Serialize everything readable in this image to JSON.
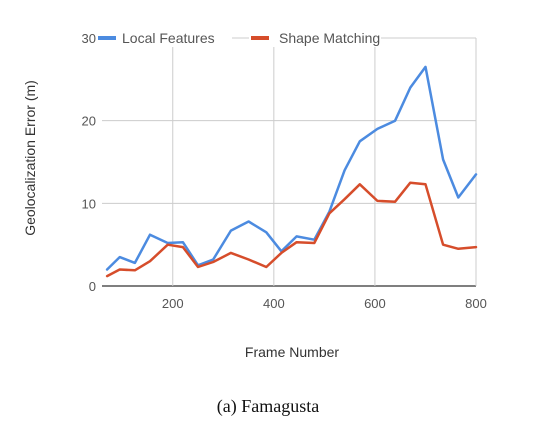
{
  "chart_data": {
    "type": "line",
    "title": "",
    "xlabel": "Frame Number",
    "ylabel": "Geolocalization Error (m)",
    "xlim": [
      60,
      800
    ],
    "ylim": [
      0,
      30
    ],
    "x_ticks": [
      200,
      400,
      600,
      800
    ],
    "y_ticks": [
      0,
      10,
      20,
      30
    ],
    "grid": true,
    "legend_position": "top",
    "x": [
      70,
      95,
      125,
      155,
      190,
      220,
      250,
      280,
      315,
      350,
      385,
      415,
      445,
      480,
      510,
      540,
      570,
      605,
      640,
      670,
      700,
      735,
      765,
      800
    ],
    "series": [
      {
        "name": "Local Features",
        "color": "#4c8be0",
        "values": [
          2.0,
          3.5,
          2.8,
          6.2,
          5.2,
          5.3,
          2.5,
          3.2,
          6.7,
          7.8,
          6.5,
          4.2,
          6.0,
          5.6,
          9.0,
          14.0,
          17.5,
          19.0,
          20.0,
          24.0,
          26.5,
          15.3,
          10.7,
          13.5
        ]
      },
      {
        "name": "Shape Matching",
        "color": "#d64d2b",
        "values": [
          1.2,
          2.0,
          1.9,
          3.0,
          5.0,
          4.7,
          2.3,
          2.9,
          4.0,
          3.2,
          2.3,
          4.0,
          5.3,
          5.2,
          8.8,
          10.5,
          12.3,
          10.3,
          10.2,
          12.5,
          12.3,
          5.0,
          4.5,
          4.7
        ]
      }
    ]
  },
  "caption": "(a) Famagusta"
}
